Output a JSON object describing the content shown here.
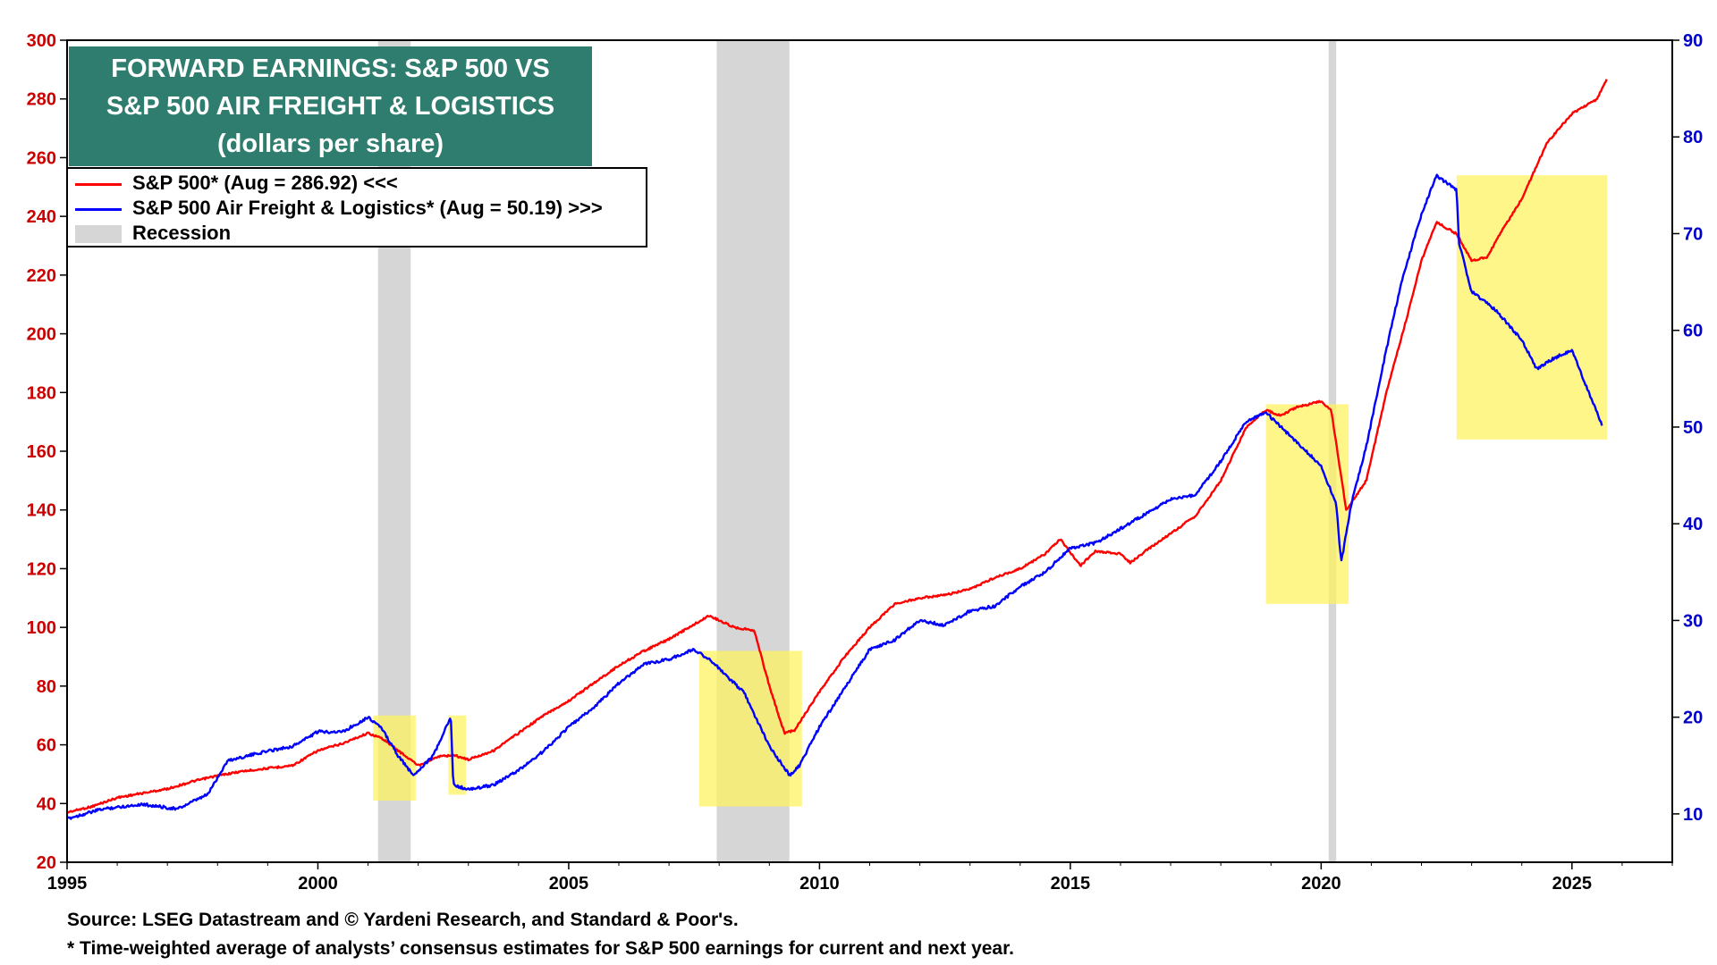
{
  "title": {
    "line1": "FORWARD EARNINGS: S&P 500 VS",
    "line2": "S&P 500 AIR FREIGHT & LOGISTICS",
    "line3": "(dollars per share)"
  },
  "legend": {
    "sp500": "S&P 500* (Aug = 286.92) <<<",
    "air_freight": "S&P 500 Air Freight & Logistics* (Aug = 50.19) >>>",
    "recession": "Recession"
  },
  "footer": {
    "source": "Source: LSEG Datastream and © Yardeni Research, and Standard & Poor's.",
    "note": "* Time-weighted average of analysts’ consensus estimates for S&P 500 earnings for current and next year."
  },
  "colors": {
    "sp500": "#ff0000",
    "air_freight": "#0000ff",
    "overlap": "#000033",
    "recession": "#d6d6d6",
    "highlight": "#fff35c",
    "title_bg": "#2e7d6e",
    "left_axis": "#cc0000",
    "right_axis": "#0000cc"
  },
  "chart_data": {
    "type": "line",
    "x_range": [
      1995,
      2027
    ],
    "x_ticks": [
      1995,
      2000,
      2005,
      2010,
      2015,
      2020,
      2025
    ],
    "left_axis": {
      "range": [
        20,
        300
      ],
      "ticks": [
        20,
        40,
        60,
        80,
        100,
        120,
        140,
        160,
        180,
        200,
        220,
        240,
        260,
        280,
        300
      ]
    },
    "right_axis": {
      "range": [
        5,
        90
      ],
      "ticks": [
        10,
        20,
        30,
        40,
        50,
        60,
        70,
        80,
        90
      ]
    },
    "recessions": [
      [
        2001.2,
        2001.85
      ],
      [
        2007.95,
        2009.4
      ],
      [
        2020.15,
        2020.3
      ]
    ],
    "highlights": [
      {
        "x": [
          2001.1,
          2001.95
        ],
        "y_left": [
          41,
          70
        ]
      },
      {
        "x": [
          2002.6,
          2002.95
        ],
        "y_left": [
          43,
          70
        ]
      },
      {
        "x": [
          2007.6,
          2009.65
        ],
        "y_left": [
          39,
          92
        ]
      },
      {
        "x": [
          2018.9,
          2020.55
        ],
        "y_left": [
          108,
          176
        ]
      },
      {
        "x": [
          2022.7,
          2025.7
        ],
        "y_left": [
          164,
          254
        ]
      }
    ],
    "series": [
      {
        "name": "S&P 500",
        "axis": "left",
        "points": [
          [
            1995,
            37
          ],
          [
            1995.5,
            39
          ],
          [
            1996,
            42
          ],
          [
            1996.5,
            43.5
          ],
          [
            1997,
            45
          ],
          [
            1997.5,
            47.5
          ],
          [
            1998,
            49.5
          ],
          [
            1998.5,
            51
          ],
          [
            1999,
            52
          ],
          [
            1999.5,
            53
          ],
          [
            2000,
            58
          ],
          [
            2000.5,
            60.5
          ],
          [
            2001,
            64
          ],
          [
            2001.3,
            62
          ],
          [
            2001.6,
            58
          ],
          [
            2002,
            53
          ],
          [
            2002.4,
            56
          ],
          [
            2002.7,
            56.5
          ],
          [
            2003,
            55
          ],
          [
            2003.5,
            58
          ],
          [
            2004,
            64
          ],
          [
            2004.5,
            70
          ],
          [
            2005,
            75
          ],
          [
            2005.5,
            81
          ],
          [
            2006,
            87
          ],
          [
            2006.5,
            92
          ],
          [
            2007,
            96
          ],
          [
            2007.5,
            101
          ],
          [
            2007.8,
            104
          ],
          [
            2008.3,
            100
          ],
          [
            2008.7,
            99
          ],
          [
            2009,
            80
          ],
          [
            2009.3,
            64
          ],
          [
            2009.5,
            65
          ],
          [
            2010,
            78
          ],
          [
            2010.5,
            90
          ],
          [
            2011,
            100
          ],
          [
            2011.5,
            108
          ],
          [
            2012,
            110
          ],
          [
            2012.5,
            111
          ],
          [
            2013,
            113
          ],
          [
            2013.5,
            117
          ],
          [
            2014,
            120
          ],
          [
            2014.5,
            125
          ],
          [
            2014.8,
            130
          ],
          [
            2015.2,
            121
          ],
          [
            2015.5,
            126
          ],
          [
            2016,
            125
          ],
          [
            2016.2,
            122
          ],
          [
            2016.5,
            126
          ],
          [
            2017,
            132
          ],
          [
            2017.5,
            138
          ],
          [
            2018,
            150
          ],
          [
            2018.5,
            168
          ],
          [
            2018.9,
            174
          ],
          [
            2019.2,
            172
          ],
          [
            2019.5,
            175
          ],
          [
            2020,
            177
          ],
          [
            2020.2,
            174
          ],
          [
            2020.5,
            140
          ],
          [
            2020.9,
            150
          ],
          [
            2021.3,
            180
          ],
          [
            2021.7,
            205
          ],
          [
            2022,
            225
          ],
          [
            2022.3,
            238
          ],
          [
            2022.7,
            234
          ],
          [
            2023,
            225
          ],
          [
            2023.3,
            226
          ],
          [
            2023.6,
            235
          ],
          [
            2024,
            246
          ],
          [
            2024.5,
            265
          ],
          [
            2025,
            275
          ],
          [
            2025.5,
            280
          ],
          [
            2025.7,
            287
          ]
        ]
      },
      {
        "name": "S&P 500 Air Freight & Logistics",
        "axis": "right",
        "points": [
          [
            1995,
            9.5
          ],
          [
            1995.7,
            10.5
          ],
          [
            1996.5,
            11
          ],
          [
            1997.2,
            10.5
          ],
          [
            1997.8,
            12
          ],
          [
            1998.2,
            15.5
          ],
          [
            1998.6,
            16
          ],
          [
            1999,
            16.5
          ],
          [
            1999.5,
            17
          ],
          [
            2000,
            18.5
          ],
          [
            2000.5,
            18.5
          ],
          [
            2001,
            20
          ],
          [
            2001.25,
            19
          ],
          [
            2001.6,
            16
          ],
          [
            2001.9,
            14
          ],
          [
            2002.3,
            16
          ],
          [
            2002.65,
            20
          ],
          [
            2002.7,
            13
          ],
          [
            2003,
            12.5
          ],
          [
            2003.5,
            13
          ],
          [
            2004,
            14.5
          ],
          [
            2004.5,
            16.5
          ],
          [
            2005,
            19
          ],
          [
            2005.5,
            21
          ],
          [
            2006,
            23.5
          ],
          [
            2006.5,
            25.5
          ],
          [
            2007,
            26
          ],
          [
            2007.5,
            27
          ],
          [
            2007.8,
            26
          ],
          [
            2008,
            25
          ],
          [
            2008.5,
            22.5
          ],
          [
            2009,
            17
          ],
          [
            2009.4,
            14
          ],
          [
            2009.6,
            15
          ],
          [
            2010,
            19
          ],
          [
            2010.5,
            23
          ],
          [
            2011,
            27
          ],
          [
            2011.5,
            28
          ],
          [
            2012,
            30
          ],
          [
            2012.5,
            29.5
          ],
          [
            2013,
            31
          ],
          [
            2013.5,
            31.5
          ],
          [
            2014,
            33.5
          ],
          [
            2014.5,
            35
          ],
          [
            2015,
            37.5
          ],
          [
            2015.5,
            38
          ],
          [
            2016,
            39.5
          ],
          [
            2016.5,
            41
          ],
          [
            2017,
            42.5
          ],
          [
            2017.5,
            43
          ],
          [
            2018,
            46.5
          ],
          [
            2018.5,
            50.5
          ],
          [
            2018.9,
            51.5
          ],
          [
            2019.2,
            50
          ],
          [
            2019.6,
            48
          ],
          [
            2020,
            46
          ],
          [
            2020.3,
            42
          ],
          [
            2020.4,
            36
          ],
          [
            2020.6,
            42
          ],
          [
            2020.9,
            48
          ],
          [
            2021.3,
            58
          ],
          [
            2021.6,
            65
          ],
          [
            2022,
            72
          ],
          [
            2022.3,
            76
          ],
          [
            2022.7,
            74.5
          ],
          [
            2022.75,
            69
          ],
          [
            2023,
            64
          ],
          [
            2023.5,
            62
          ],
          [
            2024,
            59
          ],
          [
            2024.3,
            56
          ],
          [
            2024.6,
            57
          ],
          [
            2025,
            58
          ],
          [
            2025.3,
            54
          ],
          [
            2025.6,
            50.19
          ]
        ]
      }
    ]
  }
}
